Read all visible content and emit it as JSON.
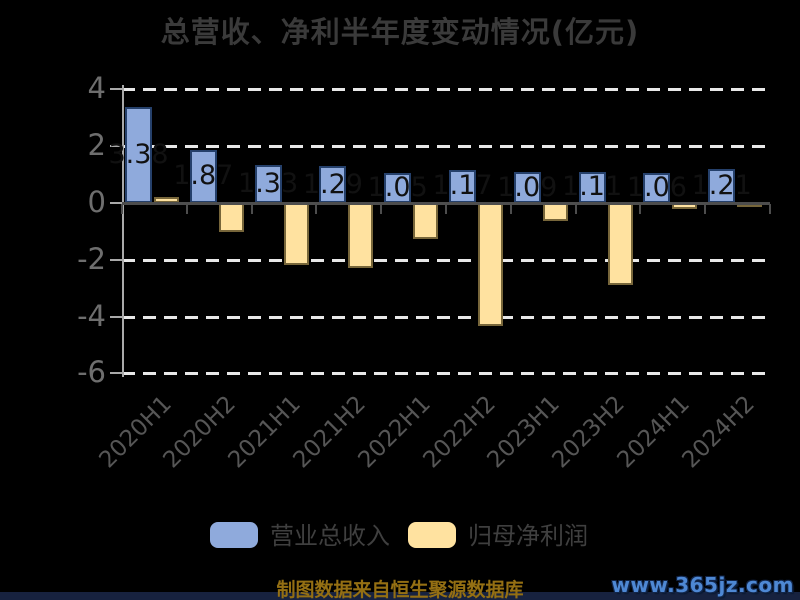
{
  "title": "总营收、净利半年度变动情况(亿元)",
  "chart_data": {
    "type": "bar",
    "title": "总营收、净利半年度变动情况(亿元)",
    "categories": [
      "2020H1",
      "2020H2",
      "2021H1",
      "2021H2",
      "2022H1",
      "2022H2",
      "2023H1",
      "2023H2",
      "2024H1",
      "2024H2"
    ],
    "series": [
      {
        "name": "营业总收入",
        "color": "#8FAADC",
        "border_color": "#25406B",
        "values": [
          3.38,
          1.87,
          1.33,
          1.29,
          1.05,
          1.17,
          1.09,
          1.11,
          1.06,
          1.21
        ],
        "labels": [
          "3.38",
          "1.87",
          "1.33",
          "1.29",
          "1.05",
          "1.17",
          "1.09",
          "1.11",
          "1.06",
          "1.21"
        ],
        "label_color": "#111111"
      },
      {
        "name": "归母净利润",
        "color": "#FFE2A0",
        "border_color": "#77663A",
        "values": [
          0.21,
          -1.01,
          -2.17,
          -2.27,
          -1.26,
          -4.33,
          -0.63,
          -2.87,
          -0.21,
          -0.15
        ]
      }
    ],
    "ylim": [
      -6,
      4
    ],
    "yticks": [
      4,
      2,
      0,
      -2,
      -4,
      -6
    ],
    "grid": "horizontal dashed white lines at labeled ticks (solid axis at 0)",
    "legend_position": "bottom",
    "xlabel": "",
    "ylabel": ""
  },
  "legend": {
    "items": [
      {
        "label": "营业总收入",
        "color": "#8FAADC"
      },
      {
        "label": "归母净利润",
        "color": "#FFE2A0"
      }
    ]
  },
  "footer": {
    "source_text": "制图数据来自恒生聚源数据库",
    "watermark": "www.365jz.com"
  },
  "colors": {
    "background": "#000000",
    "title_text": "#3a3a3a",
    "gridline": "#e8e8e8",
    "y_axis": "#a9a9a9",
    "x_axis": "#4d4d4d",
    "y_tick_label": "#6e6e6e",
    "x_tick_label": "#565656",
    "source_text": "#946f13",
    "watermark_text": "#4e88d4",
    "bottom_bar": "#17223f"
  }
}
